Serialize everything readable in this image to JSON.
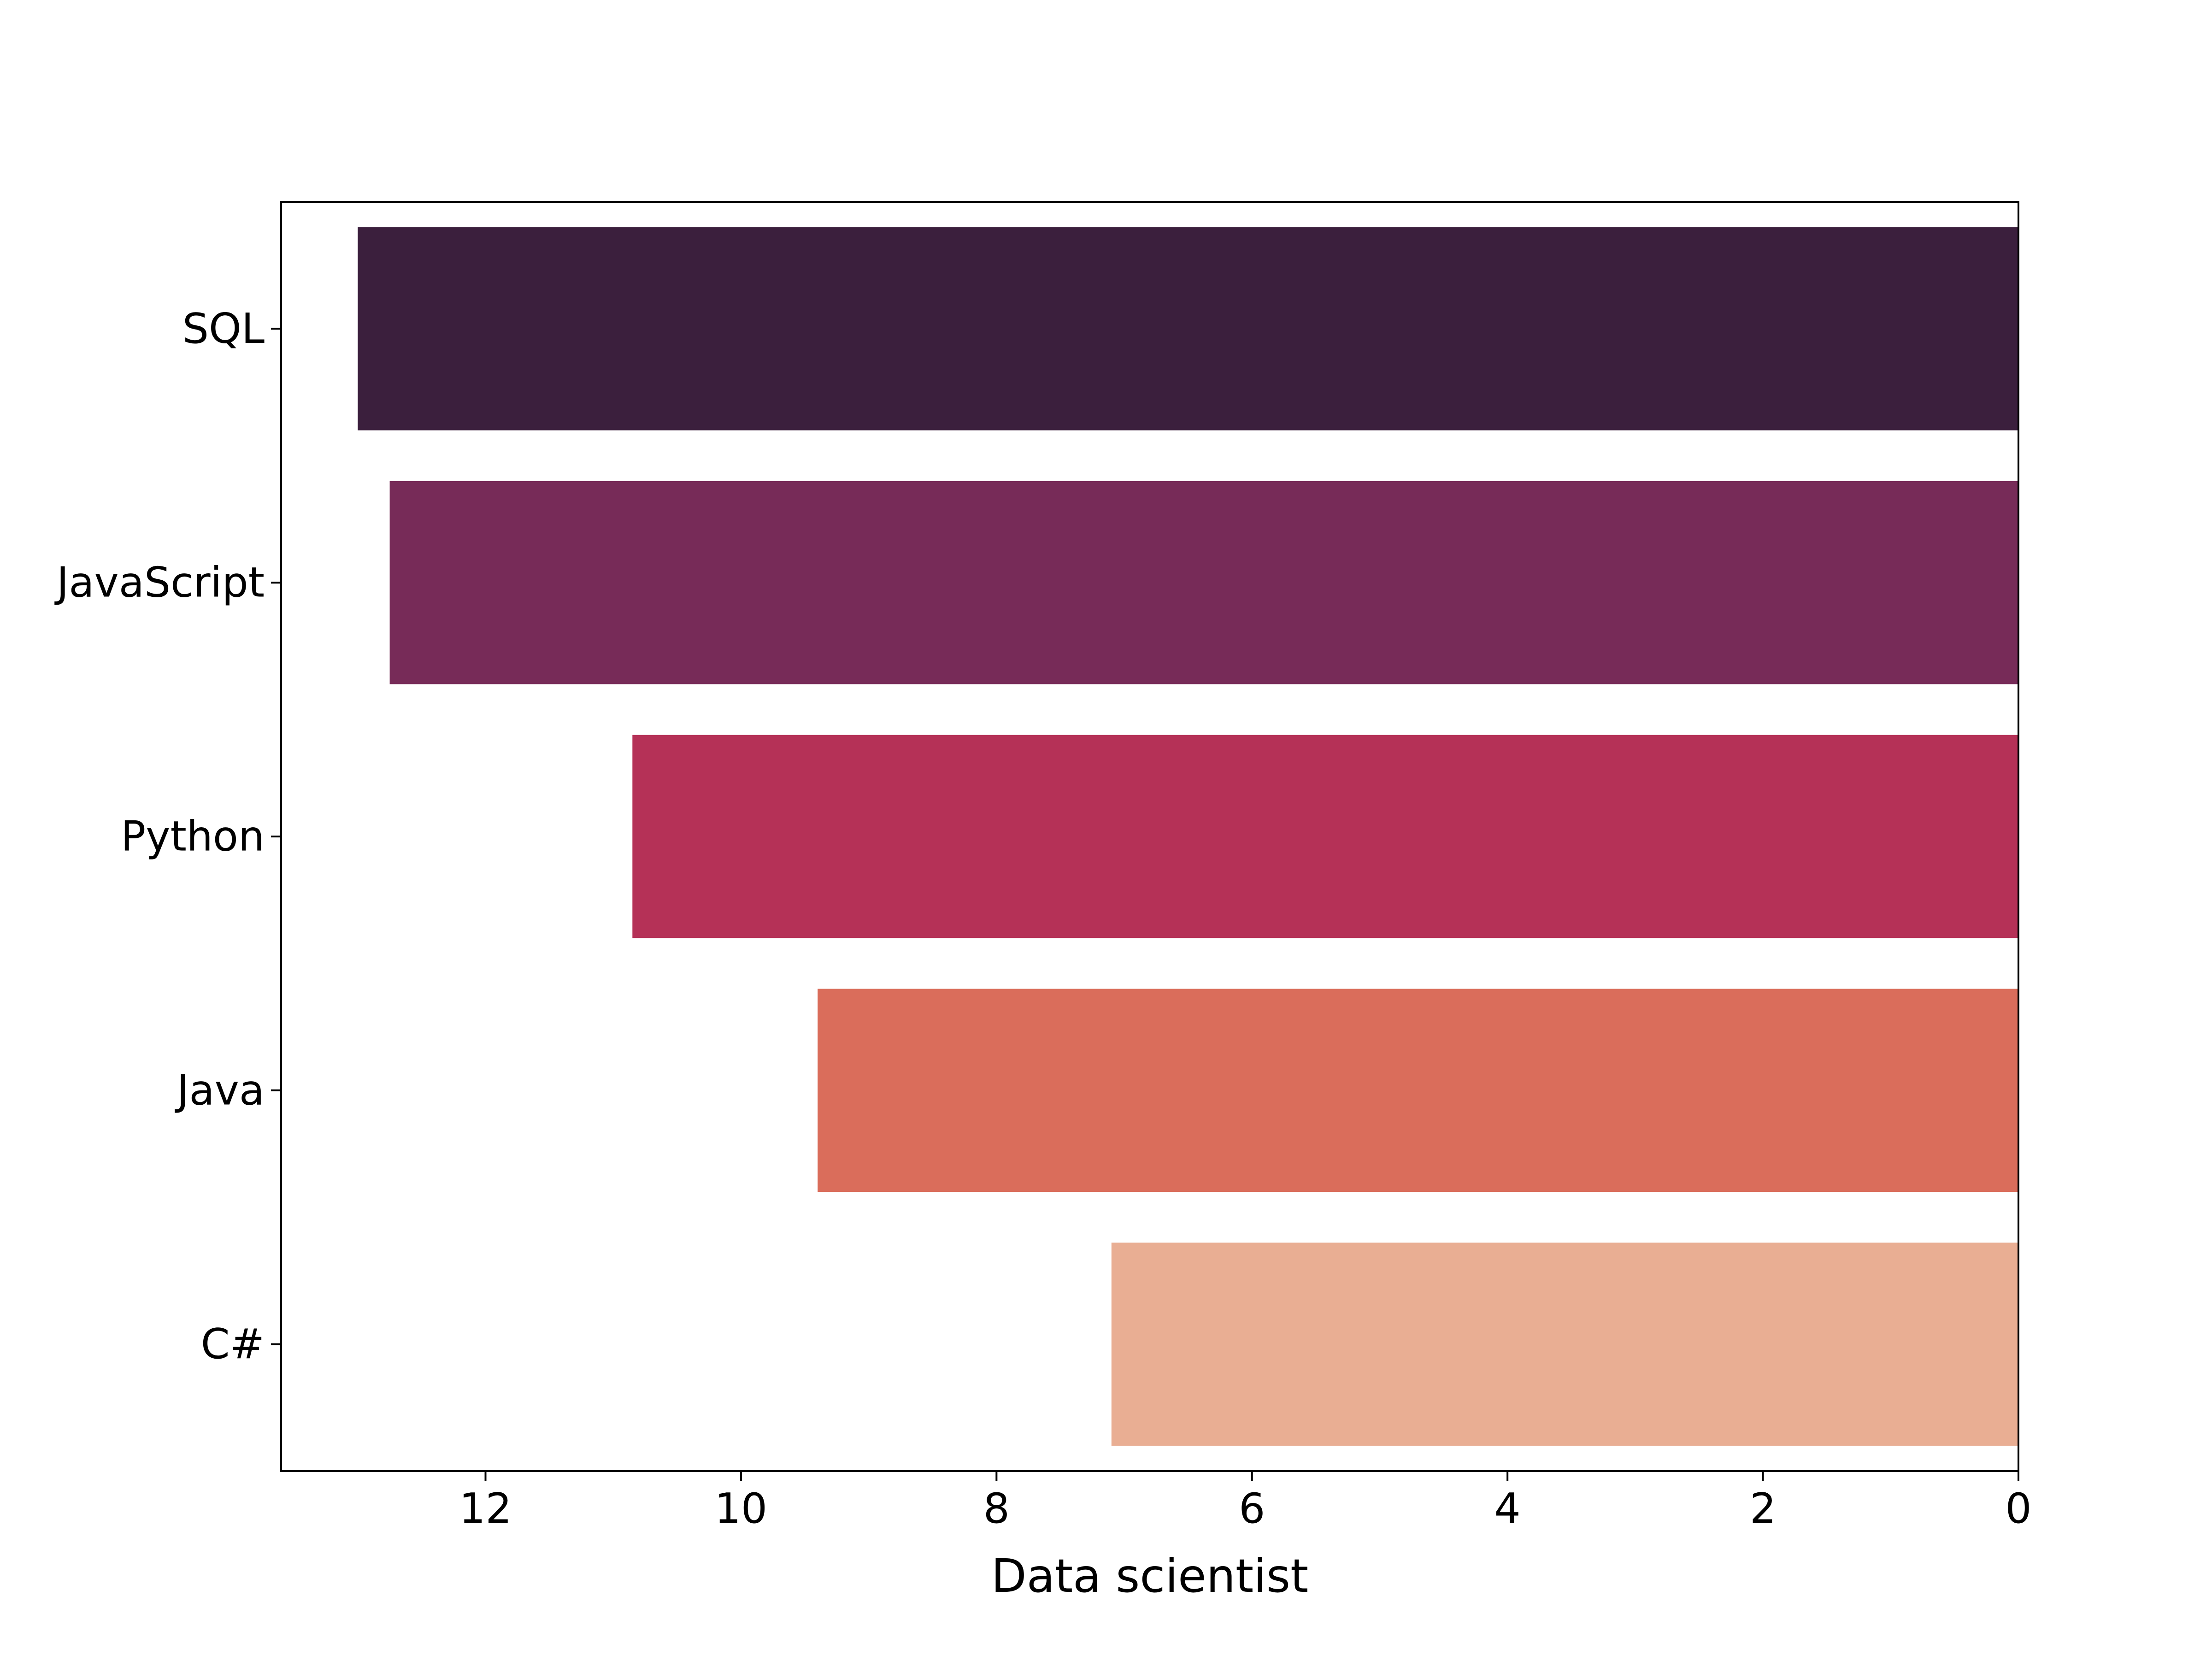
{
  "chart_data": {
    "type": "bar",
    "orientation": "horizontal",
    "x_axis_inverted": true,
    "title": "",
    "xlabel": "Data scientist",
    "ylabel": "",
    "xlim": [
      0,
      13.6
    ],
    "x_ticks": [
      0,
      2,
      4,
      6,
      8,
      10,
      12
    ],
    "grid": false,
    "legend": "none",
    "categories": [
      "SQL",
      "JavaScript",
      "Python",
      "Java",
      "C#"
    ],
    "values": [
      13.0,
      12.75,
      10.85,
      9.4,
      7.1
    ],
    "colors": [
      "#3b1f3d",
      "#772b58",
      "#b53157",
      "#da6d5b",
      "#e9ae93"
    ]
  }
}
